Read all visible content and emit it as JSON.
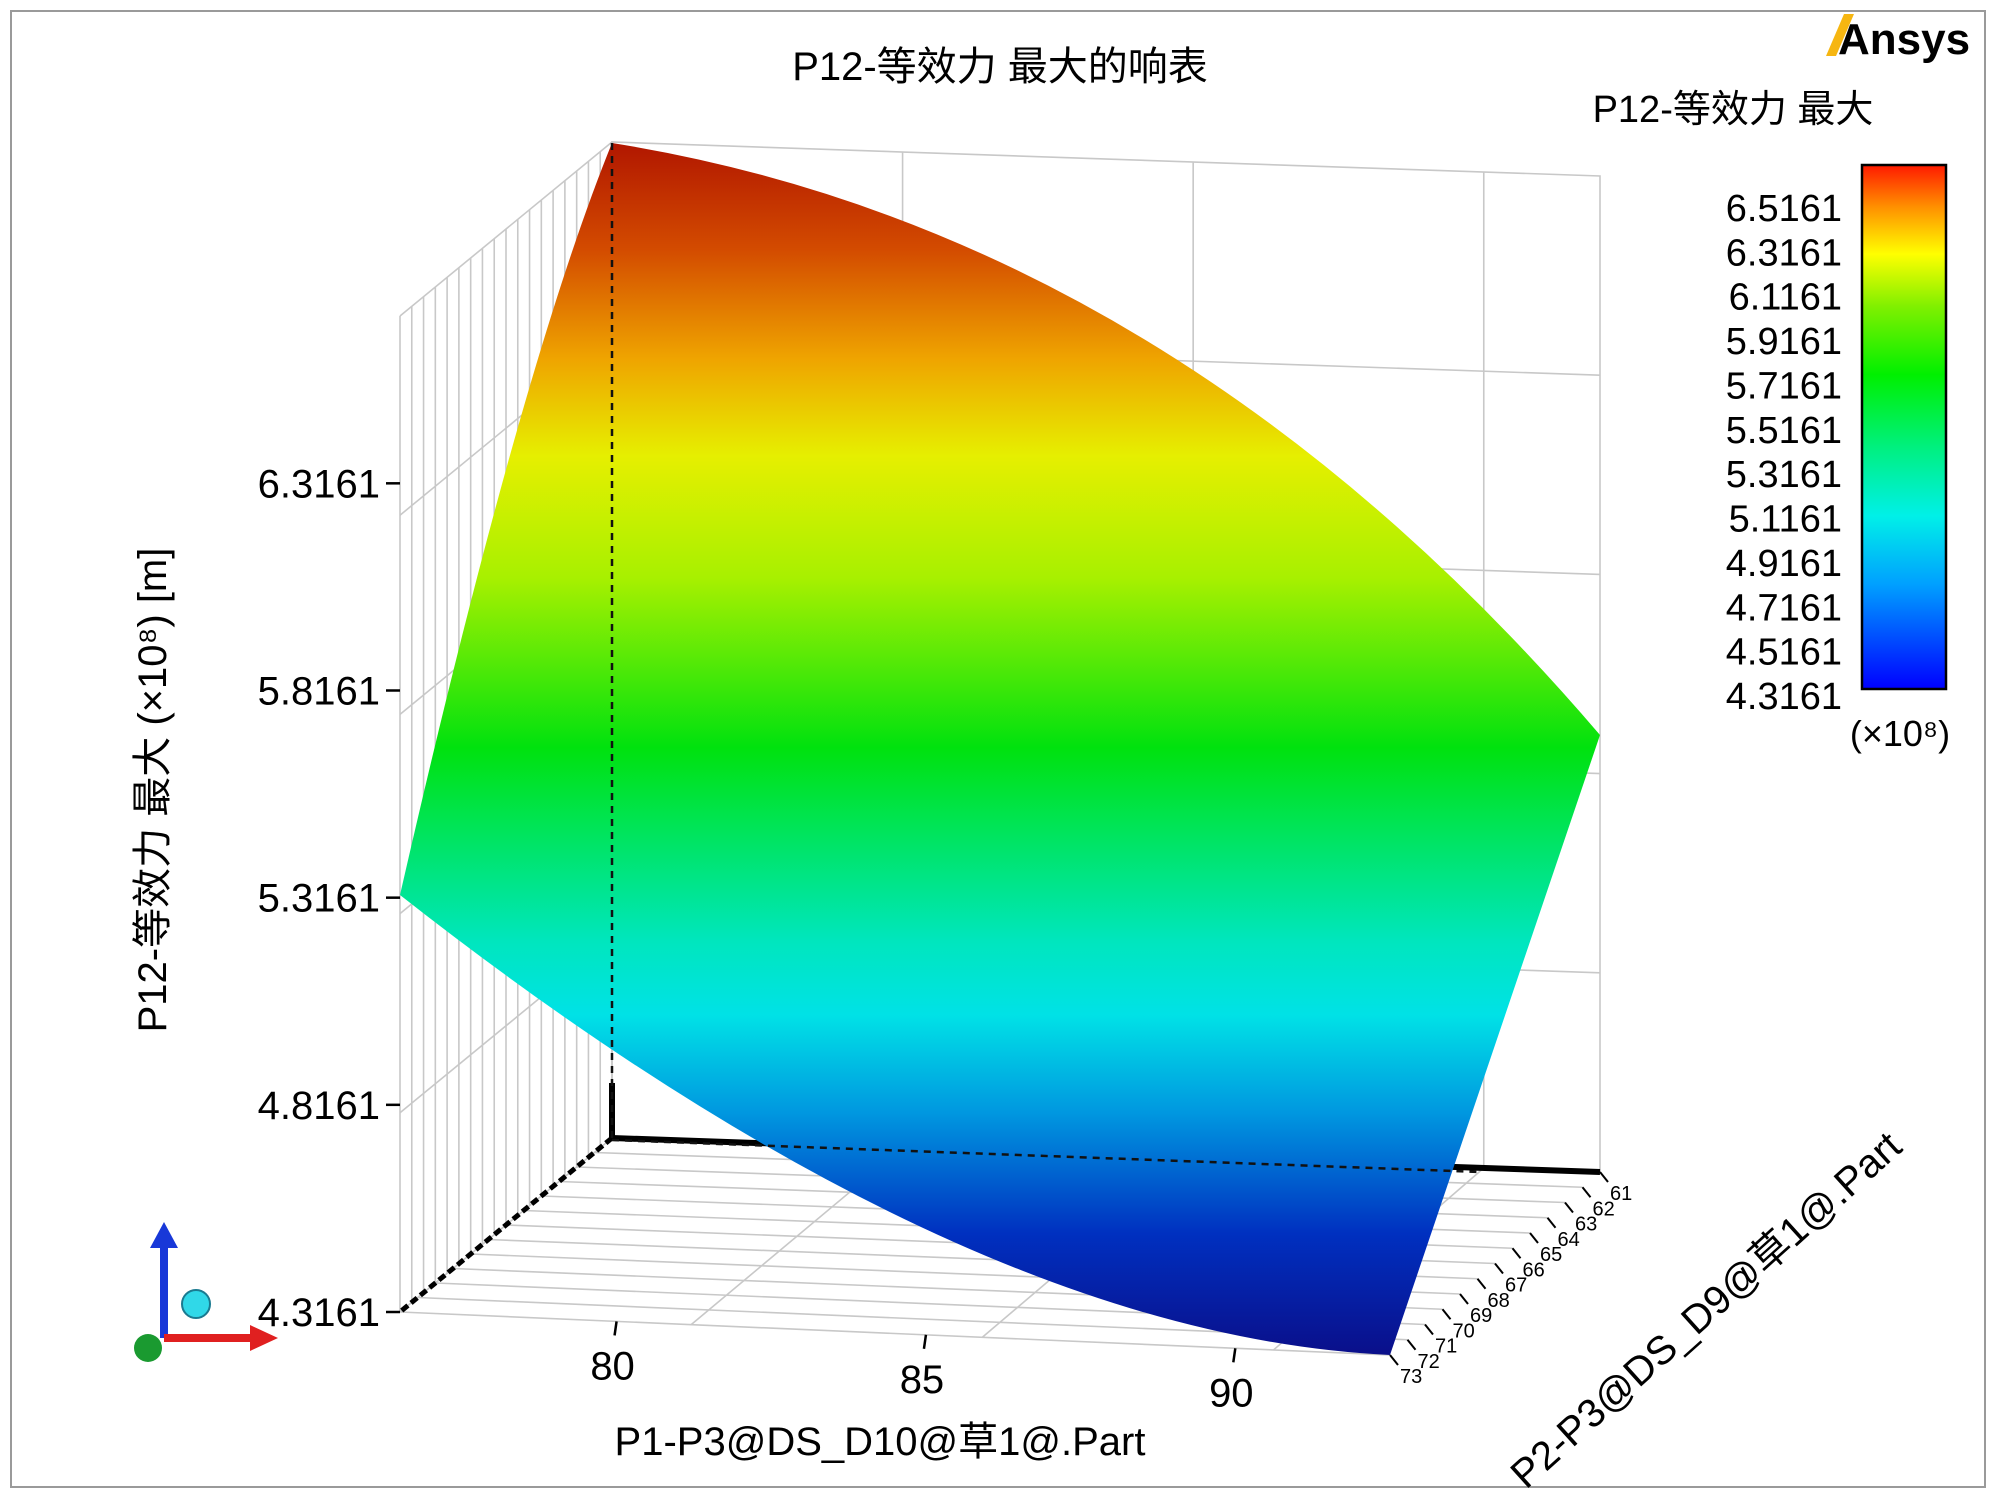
{
  "brand": {
    "logo_text": "Ansys",
    "accent": "#f6b611"
  },
  "chart_data": {
    "type": "surface3d",
    "title": "P12-等效力 最大的响表",
    "xlabel": "P1-P3@DS_D10@草1@.Part",
    "ylabel": "P2-P3@DS_D9@草1@.Part",
    "zlabel": "P12-等效力  最大  (×10⁸) [m]",
    "x_ticks": [
      "80",
      "85",
      "90"
    ],
    "y_ticks": [
      "61",
      "62",
      "63",
      "64",
      "65",
      "66",
      "67",
      "68",
      "69",
      "70",
      "71",
      "72",
      "73"
    ],
    "z_ticks": [
      "4.3161",
      "4.8161",
      "5.3161",
      "5.8161",
      "6.3161"
    ],
    "xlim": [
      76.5,
      92.5
    ],
    "ylim": [
      61,
      73
    ],
    "zlim": [
      4.3161,
      6.8161
    ],
    "corners": [
      {
        "x": 76.5,
        "y": 61,
        "z": 6.85
      },
      {
        "x": 92.5,
        "y": 61,
        "z": 5.41
      },
      {
        "x": 92.5,
        "y": 73,
        "z": 4.42
      },
      {
        "x": 76.5,
        "y": 73,
        "z": 5.32
      }
    ],
    "colorbar": {
      "title": "P12-等效力  最大",
      "ticks": [
        "6.5161",
        "6.3161",
        "6.1161",
        "5.9161",
        "5.7161",
        "5.5161",
        "5.3161",
        "5.1161",
        "4.9161",
        "4.7161",
        "4.5161",
        "4.3161"
      ],
      "unit": "(×10⁸)",
      "range": [
        4.3161,
        6.5161
      ]
    }
  }
}
